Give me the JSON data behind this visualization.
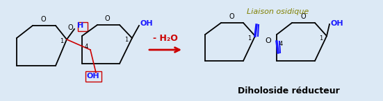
{
  "bg_color": "#dce9f5",
  "ring_color": "#000000",
  "bond_color_dark": "#1a1aff",
  "text_color_dark": "#00008B",
  "text_color_black": "#000000",
  "text_color_red": "#cc0000",
  "text_color_olive": "#808000",
  "arrow_color": "#cc0000",
  "box_color": "#cc0000",
  "label_minus_h2o": "- H₂O",
  "label_liaison": "Liaison osidique",
  "label_diholoside": "Diholoside réducteur",
  "figsize": [
    5.51,
    1.46
  ],
  "dpi": 100
}
